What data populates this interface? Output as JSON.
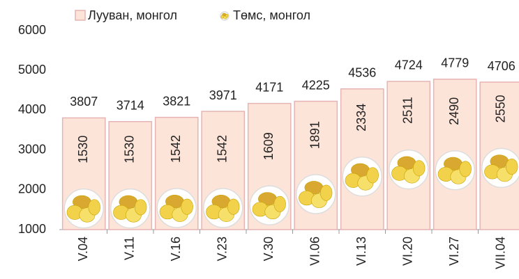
{
  "chart_data": {
    "type": "bar",
    "categories": [
      "V.04",
      "V.11",
      "V.16",
      "V.23",
      "V.30",
      "VI.06",
      "VI.13",
      "VI.20",
      "VI.27",
      "VII.04"
    ],
    "series": [
      {
        "name": "Лууван, монгол",
        "color": "#fde4d8",
        "values": [
          3807,
          3714,
          3821,
          3971,
          4171,
          4225,
          4536,
          4724,
          4779,
          4706
        ]
      },
      {
        "name": "Төмс, монгол",
        "color": "#f2d24a",
        "values": [
          1530,
          1530,
          1542,
          1542,
          1609,
          1891,
          2334,
          2511,
          2490,
          2550
        ]
      }
    ],
    "ylim": [
      1000,
      6000
    ],
    "yticks": [
      1000,
      2000,
      3000,
      4000,
      5000,
      6000
    ]
  }
}
